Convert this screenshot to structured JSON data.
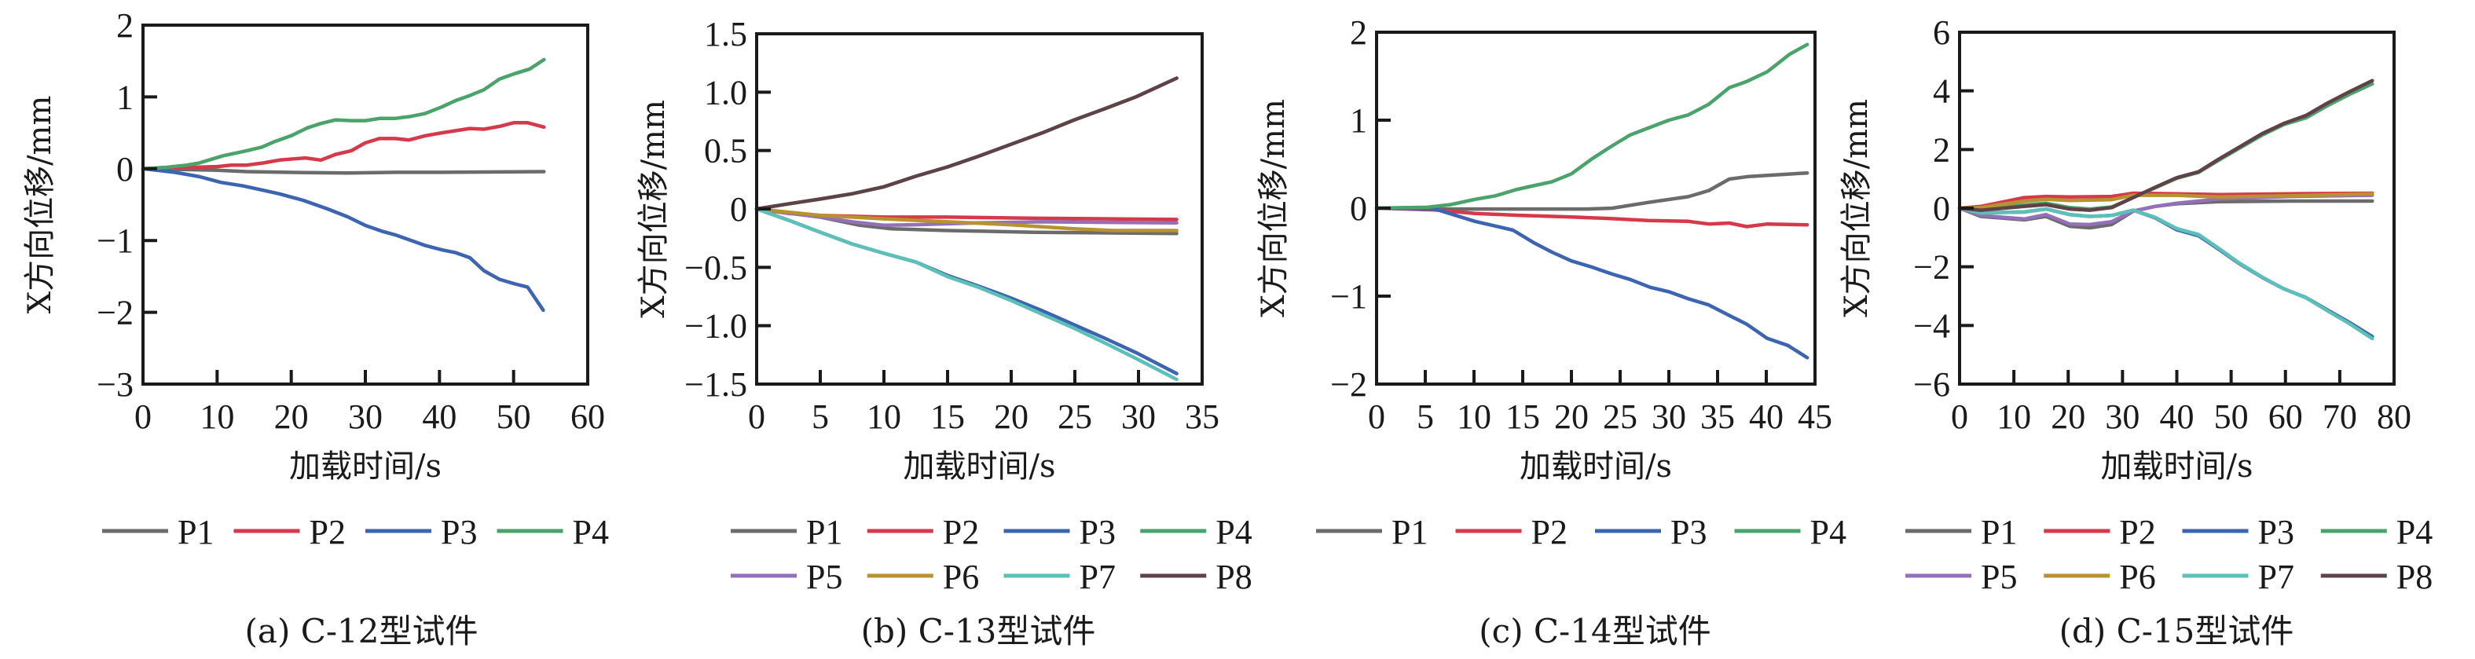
{
  "figure": {
    "series_colors": {
      "P1": "#6b6b6b",
      "P2": "#d63a4a",
      "P3": "#3c64b0",
      "P4": "#4aa36a",
      "P5": "#9470b8",
      "P6": "#b8922e",
      "P7": "#5cc0b8",
      "P8": "#5e4248"
    }
  },
  "chart_data": [
    {
      "type": "line",
      "caption": "(a) C-12型试件",
      "xlabel": "加载时间/s",
      "ylabel": "X方向位移/mm",
      "xlim": [
        0,
        60
      ],
      "ylim": [
        -3,
        2
      ],
      "xticks": [
        0,
        10,
        20,
        30,
        40,
        50,
        60
      ],
      "yticks": [
        -3,
        -2,
        -1,
        0,
        1,
        2
      ],
      "ytick_labels": [
        "−3",
        "−2",
        "−1",
        "0",
        "1",
        "2"
      ],
      "grid": false,
      "legend": {
        "placement": "below",
        "entries": [
          "P1",
          "P2",
          "P3",
          "P4"
        ]
      },
      "series": [
        {
          "name": "P1",
          "x": [
            0,
            9.7,
            14,
            19.5,
            27.6,
            34,
            40,
            54.1
          ],
          "y": [
            0,
            -0.02,
            -0.04,
            -0.05,
            -0.06,
            -0.05,
            -0.05,
            -0.04
          ]
        },
        {
          "name": "P2",
          "x": [
            0,
            3.2,
            10,
            11.9,
            14,
            16.2,
            18.4,
            21.9,
            24,
            26,
            28.1,
            30,
            31.9,
            34,
            35.9,
            38.1,
            40.3,
            42.2,
            44.1,
            46,
            48.1,
            50,
            51.9,
            54.1
          ],
          "y": [
            0,
            0.01,
            0.03,
            0.05,
            0.05,
            0.08,
            0.12,
            0.15,
            0.12,
            0.2,
            0.25,
            0.36,
            0.42,
            0.42,
            0.4,
            0.46,
            0.5,
            0.53,
            0.56,
            0.55,
            0.59,
            0.64,
            0.64,
            0.58
          ]
        },
        {
          "name": "P3",
          "x": [
            0,
            4.3,
            7.6,
            10.5,
            13.5,
            16.2,
            18.4,
            21.6,
            24.9,
            27.6,
            30,
            32.2,
            34,
            35.9,
            38.1,
            40.3,
            42.2,
            44.1,
            46,
            48.1,
            50,
            51.9,
            54
          ],
          "y": [
            0,
            -0.05,
            -0.11,
            -0.19,
            -0.24,
            -0.3,
            -0.35,
            -0.44,
            -0.56,
            -0.67,
            -0.79,
            -0.87,
            -0.92,
            -0.99,
            -1.07,
            -1.13,
            -1.17,
            -1.24,
            -1.42,
            -1.54,
            -1.6,
            -1.65,
            -1.97
          ]
        },
        {
          "name": "P4",
          "x": [
            0,
            3.2,
            5.9,
            7.6,
            10.8,
            13.5,
            16,
            17.8,
            20,
            22.2,
            24,
            26,
            28.1,
            30,
            31.9,
            34,
            36.2,
            38.1,
            40.3,
            42.2,
            44.1,
            46,
            48.1,
            50,
            52.2,
            54.1
          ],
          "y": [
            0,
            0.02,
            0.05,
            0.08,
            0.18,
            0.24,
            0.3,
            0.38,
            0.46,
            0.57,
            0.63,
            0.68,
            0.67,
            0.67,
            0.7,
            0.7,
            0.73,
            0.77,
            0.86,
            0.95,
            1.02,
            1.1,
            1.25,
            1.32,
            1.39,
            1.52
          ]
        }
      ]
    },
    {
      "type": "line",
      "caption": "(b) C-13型试件",
      "xlabel": "加载时间/s",
      "ylabel": "X方向位移/mm",
      "xlim": [
        0,
        35
      ],
      "ylim": [
        -1.5,
        1.5
      ],
      "xticks": [
        0,
        5,
        10,
        15,
        20,
        25,
        30,
        35
      ],
      "yticks": [
        -1.5,
        -1.0,
        -0.5,
        0,
        0.5,
        1.0,
        1.5
      ],
      "ytick_labels": [
        "−1.5",
        "−1.0",
        "−0.5",
        "0",
        "0.5",
        "1.0",
        "1.5"
      ],
      "grid": false,
      "legend": {
        "placement": "below",
        "entries": [
          "P1",
          "P2",
          "P3",
          "P4",
          "P5",
          "P6",
          "P7",
          "P8"
        ]
      },
      "series": [
        {
          "name": "P1",
          "x": [
            0,
            5,
            8.1,
            10.6,
            15,
            21.8,
            33
          ],
          "y": [
            0,
            -0.07,
            -0.14,
            -0.17,
            -0.185,
            -0.2,
            -0.21
          ]
        },
        {
          "name": "P2",
          "x": [
            0,
            2.6,
            5,
            10,
            15,
            22,
            33
          ],
          "y": [
            0,
            -0.04,
            -0.056,
            -0.07,
            -0.07,
            -0.08,
            -0.09
          ]
        },
        {
          "name": "P3",
          "x": [
            0,
            2.6,
            5,
            7.5,
            10,
            12.5,
            15,
            17.4,
            19.9,
            22.4,
            24.9,
            27.4,
            29.8,
            33
          ],
          "y": [
            0,
            -0.1,
            -0.2,
            -0.3,
            -0.38,
            -0.455,
            -0.57,
            -0.66,
            -0.76,
            -0.87,
            -0.99,
            -1.11,
            -1.23,
            -1.41
          ]
        },
        {
          "name": "P4",
          "x": [
            0,
            2.6,
            5,
            7.5,
            10,
            12.5,
            15,
            17.4,
            19.9,
            22.4,
            24.9,
            27.4,
            29.8,
            33
          ],
          "y": [
            0,
            0.045,
            0.085,
            0.13,
            0.19,
            0.28,
            0.36,
            0.45,
            0.55,
            0.65,
            0.76,
            0.86,
            0.96,
            1.12
          ]
        },
        {
          "name": "P5",
          "x": [
            0,
            5,
            7.5,
            10,
            12.5,
            17.4,
            22.4,
            33
          ],
          "y": [
            0,
            -0.07,
            -0.11,
            -0.14,
            -0.135,
            -0.12,
            -0.11,
            -0.12
          ]
        },
        {
          "name": "P6",
          "x": [
            0,
            5,
            10,
            15,
            19.9,
            24.9,
            28,
            33
          ],
          "y": [
            0,
            -0.056,
            -0.085,
            -0.11,
            -0.135,
            -0.17,
            -0.185,
            -0.185
          ]
        },
        {
          "name": "P7",
          "x": [
            0,
            2.6,
            5,
            7.5,
            10,
            12.5,
            15,
            17.4,
            19.9,
            22.4,
            24.9,
            27.4,
            29.8,
            33
          ],
          "y": [
            0,
            -0.1,
            -0.2,
            -0.3,
            -0.38,
            -0.455,
            -0.58,
            -0.67,
            -0.78,
            -0.9,
            -1.02,
            -1.15,
            -1.28,
            -1.46
          ]
        },
        {
          "name": "P8",
          "x": [
            0,
            2.6,
            5,
            7.5,
            10,
            12.5,
            15,
            17.4,
            19.9,
            22.4,
            24.9,
            27.4,
            29.8,
            33
          ],
          "y": [
            0,
            0.045,
            0.085,
            0.13,
            0.19,
            0.28,
            0.36,
            0.45,
            0.55,
            0.65,
            0.76,
            0.86,
            0.96,
            1.12
          ]
        }
      ]
    },
    {
      "type": "line",
      "caption": "(c) C-14型试件",
      "xlabel": "加载时间/s",
      "ylabel": "X方向位移/mm",
      "xlim": [
        0,
        45
      ],
      "ylim": [
        -2,
        2
      ],
      "xticks": [
        0,
        5,
        10,
        15,
        20,
        25,
        30,
        35,
        40,
        45
      ],
      "yticks": [
        -2,
        -1,
        0,
        1,
        2
      ],
      "ytick_labels": [
        "−2",
        "−1",
        "0",
        "1",
        "2"
      ],
      "grid": false,
      "legend": {
        "placement": "below",
        "entries": [
          "P1",
          "P2",
          "P3",
          "P4"
        ]
      },
      "series": [
        {
          "name": "P1",
          "x": [
            0,
            7,
            21.7,
            24.2,
            27.9,
            32,
            34.1,
            36.2,
            38.2,
            44.2
          ],
          "y": [
            0,
            -0.01,
            -0.01,
            0,
            0.065,
            0.13,
            0.2,
            0.33,
            0.36,
            0.4
          ]
        },
        {
          "name": "P2",
          "x": [
            0,
            6,
            10.1,
            14.3,
            20,
            24.2,
            27.9,
            32,
            34.1,
            36.2,
            38,
            40.1,
            44.2
          ],
          "y": [
            0,
            -0.02,
            -0.06,
            -0.08,
            -0.1,
            -0.12,
            -0.14,
            -0.15,
            -0.18,
            -0.17,
            -0.21,
            -0.18,
            -0.19
          ]
        },
        {
          "name": "P3",
          "x": [
            0,
            6,
            10.1,
            14,
            16.1,
            18,
            20,
            22.1,
            24.2,
            26,
            28.1,
            30,
            32,
            34.1,
            36.2,
            38,
            40.1,
            42.2,
            44.2
          ],
          "y": [
            0,
            -0.01,
            -0.15,
            -0.25,
            -0.39,
            -0.5,
            -0.6,
            -0.67,
            -0.75,
            -0.81,
            -0.9,
            -0.95,
            -1.03,
            -1.1,
            -1.22,
            -1.32,
            -1.48,
            -1.56,
            -1.7
          ]
        },
        {
          "name": "P4",
          "x": [
            0,
            5.2,
            7.6,
            10.1,
            12.2,
            14.3,
            15.9,
            18,
            20,
            22.1,
            24.2,
            26,
            28.1,
            30,
            32,
            34.1,
            36.2,
            38,
            40.1,
            42.4,
            44.2
          ],
          "y": [
            0,
            0.01,
            0.04,
            0.1,
            0.14,
            0.21,
            0.25,
            0.3,
            0.39,
            0.56,
            0.71,
            0.83,
            0.92,
            1.0,
            1.06,
            1.18,
            1.37,
            1.44,
            1.55,
            1.75,
            1.86
          ]
        }
      ]
    },
    {
      "type": "line",
      "caption": "(d) C-15型试件",
      "xlabel": "加载时间/s",
      "ylabel": "X方向位移/mm",
      "xlim": [
        0,
        80
      ],
      "ylim": [
        -6,
        6
      ],
      "xticks": [
        0,
        10,
        20,
        30,
        40,
        50,
        60,
        70,
        80
      ],
      "yticks": [
        -6,
        -4,
        -2,
        0,
        2,
        4,
        6
      ],
      "ytick_labels": [
        "−6",
        "−4",
        "−2",
        "0",
        "2",
        "4",
        "6"
      ],
      "grid": false,
      "legend": {
        "placement": "below",
        "entries": [
          "P1",
          "P2",
          "P3",
          "P4",
          "P5",
          "P6",
          "P7",
          "P8"
        ]
      },
      "series": [
        {
          "name": "P1",
          "x": [
            0,
            3.9,
            11.9,
            15.9,
            20.3,
            24,
            28,
            32,
            36,
            40,
            47.7,
            60.8,
            76
          ],
          "y": [
            0,
            -0.28,
            -0.4,
            -0.28,
            -0.62,
            -0.67,
            -0.56,
            -0.1,
            0.06,
            0.15,
            0.22,
            0.24,
            0.24
          ]
        },
        {
          "name": "P2",
          "x": [
            0,
            3.9,
            11.9,
            15.9,
            20.3,
            28,
            32,
            40,
            47.7,
            60.8,
            76
          ],
          "y": [
            0,
            0.06,
            0.36,
            0.4,
            0.38,
            0.4,
            0.51,
            0.49,
            0.46,
            0.49,
            0.51
          ]
        },
        {
          "name": "P3",
          "x": [
            0,
            3.9,
            11.9,
            15.9,
            20.3,
            24,
            28,
            32,
            36,
            40,
            44,
            47.7,
            51.4,
            55.7,
            59.7,
            63.8,
            67.8,
            71.8,
            76
          ],
          "y": [
            0,
            -0.16,
            -0.13,
            -0.03,
            -0.22,
            -0.28,
            -0.25,
            -0.07,
            -0.33,
            -0.74,
            -0.94,
            -1.4,
            -1.88,
            -2.36,
            -2.75,
            -3.05,
            -3.48,
            -3.9,
            -4.38
          ]
        },
        {
          "name": "P4",
          "x": [
            0,
            3.9,
            11.9,
            15.9,
            20.3,
            24,
            28,
            31.6,
            36,
            40,
            44,
            47.7,
            51.4,
            55.7,
            59.7,
            63.8,
            67.8,
            71.8,
            76
          ],
          "y": [
            0,
            -0.04,
            0.11,
            0.17,
            0.02,
            -0.03,
            0.04,
            0.33,
            0.69,
            1.02,
            1.22,
            1.63,
            2.03,
            2.49,
            2.85,
            3.08,
            3.5,
            3.88,
            4.24
          ]
        },
        {
          "name": "P5",
          "x": [
            0,
            3.9,
            11.9,
            15.9,
            20.3,
            24,
            28,
            32,
            36,
            40,
            44,
            47.7,
            60.8,
            76
          ],
          "y": [
            0,
            -0.25,
            -0.37,
            -0.22,
            -0.54,
            -0.56,
            -0.46,
            -0.1,
            0.06,
            0.17,
            0.24,
            0.31,
            0.4,
            0.44
          ]
        },
        {
          "name": "P6",
          "x": [
            0,
            3.9,
            11.9,
            15.9,
            20.3,
            28,
            32,
            40,
            47.7,
            60.8,
            76
          ],
          "y": [
            0,
            0.02,
            0.24,
            0.3,
            0.26,
            0.29,
            0.44,
            0.44,
            0.38,
            0.42,
            0.49
          ]
        },
        {
          "name": "P7",
          "x": [
            0,
            3.9,
            11.9,
            15.9,
            20.3,
            24,
            28,
            32,
            36,
            40,
            44,
            47.7,
            51.4,
            55.7,
            59.7,
            63.8,
            67.8,
            71.8,
            76
          ],
          "y": [
            0,
            -0.16,
            -0.13,
            -0.03,
            -0.22,
            -0.28,
            -0.25,
            -0.07,
            -0.31,
            -0.7,
            -0.9,
            -1.37,
            -1.86,
            -2.35,
            -2.75,
            -3.06,
            -3.51,
            -3.94,
            -4.45
          ]
        },
        {
          "name": "P8",
          "x": [
            0,
            3.9,
            11.9,
            15.9,
            20.3,
            24,
            28,
            31.6,
            36,
            40,
            44,
            47.7,
            51.4,
            55.7,
            59.7,
            63.8,
            67.8,
            71.8,
            76
          ],
          "y": [
            0,
            -0.07,
            0.06,
            0.12,
            -0.03,
            -0.07,
            0.02,
            0.33,
            0.71,
            1.04,
            1.24,
            1.67,
            2.07,
            2.54,
            2.89,
            3.16,
            3.59,
            3.97,
            4.35
          ]
        }
      ]
    }
  ]
}
